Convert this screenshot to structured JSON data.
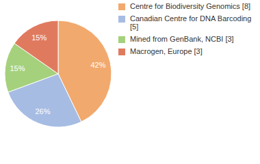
{
  "chart_data": {
    "type": "pie",
    "categories": [
      "Centre for Biodiversity Genomics [8]",
      "Canadian Centre for DNA Barcoding [5]",
      "Mined from GenBank, NCBI [3]",
      "Macrogen, Europe [3]"
    ],
    "values": [
      42,
      26,
      15,
      15
    ],
    "value_labels": [
      "42%",
      "26%",
      "15%",
      "15%"
    ],
    "colors": [
      "#f2a96d",
      "#a6bce3",
      "#a5d17d",
      "#e07a5f"
    ],
    "data_labels": true,
    "legend": "top-right"
  }
}
